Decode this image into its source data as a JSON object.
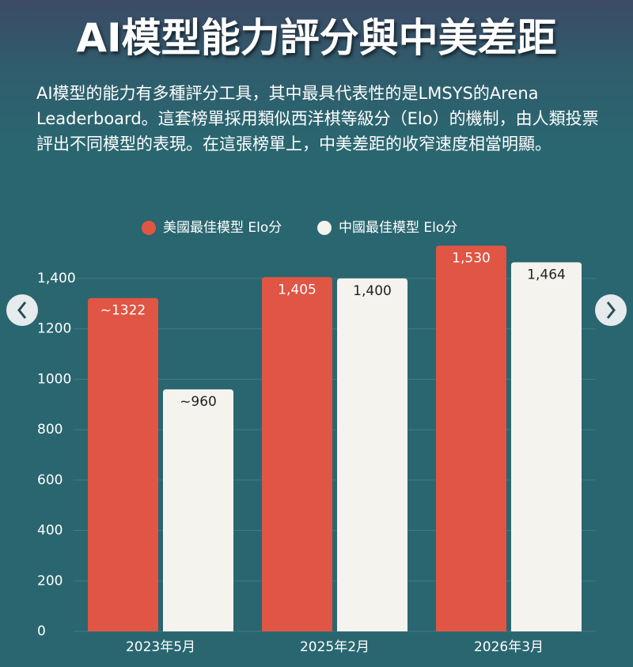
{
  "title": "AI模型能力評分與中美差距",
  "description": "AI模型的能力有多種評分工具，其中最具代表性的是LMSYS的Arena Leaderboard。這套榜單採用類似西洋棋等級分（Elo）的機制，由人類投票評出不同模型的表現。在這張榜單上，中美差距的收窄速度相當明顯。",
  "chart_data": {
    "type": "bar",
    "categories": [
      "2023年5月",
      "2025年2月",
      "2026年3月"
    ],
    "series": [
      {
        "name": "美國最佳模型 Elo分",
        "color": "#e05544",
        "values": [
          1322,
          1405,
          1530
        ],
        "value_labels": [
          "~1322",
          "1,405",
          "1,530"
        ]
      },
      {
        "name": "中國最佳模型 Elo分",
        "color": "#f5f3ee",
        "values": [
          960,
          1400,
          1464
        ],
        "value_labels": [
          "~960",
          "1,400",
          "1,464"
        ]
      }
    ],
    "ylim": [
      0,
      1500
    ],
    "yticks": [
      0,
      200,
      400,
      600,
      800,
      1000,
      1200,
      {
        "value": 1400,
        "label": "1,400"
      }
    ],
    "grid": true,
    "legend": "top"
  }
}
